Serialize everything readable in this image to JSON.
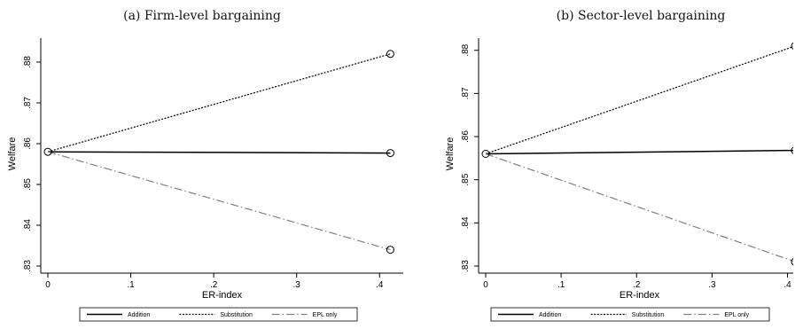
{
  "chart_data": [
    {
      "type": "line",
      "panel_title": "(a) Firm-level bargaining",
      "xlabel": "ER-index",
      "ylabel": "Welfare",
      "xlim": [
        0,
        0.42
      ],
      "ylim": [
        0.83,
        0.885
      ],
      "xticks": [
        0,
        0.1,
        0.2,
        0.3,
        0.4
      ],
      "xtick_labels": [
        "0",
        ".1",
        ".2",
        ".3",
        ".4"
      ],
      "yticks": [
        0.83,
        0.84,
        0.85,
        0.86,
        0.87,
        0.88
      ],
      "ytick_labels": [
        ".83",
        ".84",
        ".85",
        ".86",
        ".87",
        ".88"
      ],
      "grid": false,
      "legend_position": "bottom",
      "series": [
        {
          "name": "Addition",
          "x": [
            0,
            0.413
          ],
          "y": [
            0.858,
            0.8577
          ],
          "style": "solid",
          "color": "#000000"
        },
        {
          "name": "Substitution",
          "x": [
            0,
            0.413
          ],
          "y": [
            0.858,
            0.882
          ],
          "style": "dotted",
          "color": "#000000"
        },
        {
          "name": "EPL only",
          "x": [
            0,
            0.413
          ],
          "y": [
            0.858,
            0.834
          ],
          "style": "dashdot",
          "color": "#808080"
        }
      ],
      "markers": [
        [
          0,
          0.858
        ],
        [
          0.413,
          0.882
        ],
        [
          0.413,
          0.8577
        ],
        [
          0.413,
          0.834
        ]
      ]
    },
    {
      "type": "line",
      "panel_title": "(b) Sector-level bargaining",
      "xlabel": "ER-index",
      "ylabel": "Welfare",
      "xlim": [
        0,
        0.41
      ],
      "ylim": [
        0.83,
        0.882
      ],
      "xticks": [
        0,
        0.1,
        0.2,
        0.3,
        0.4
      ],
      "xtick_labels": [
        "0",
        ".1",
        ".2",
        ".3",
        ".4"
      ],
      "yticks": [
        0.83,
        0.84,
        0.85,
        0.86,
        0.87,
        0.88
      ],
      "ytick_labels": [
        ".83",
        ".84",
        ".85",
        ".86",
        ".87",
        ".88"
      ],
      "grid": false,
      "legend_position": "bottom",
      "series": [
        {
          "name": "Addition",
          "x": [
            0,
            0.41
          ],
          "y": [
            0.856,
            0.8568
          ],
          "style": "solid",
          "color": "#000000"
        },
        {
          "name": "Substitution",
          "x": [
            0,
            0.41
          ],
          "y": [
            0.856,
            0.881
          ],
          "style": "dotted",
          "color": "#000000"
        },
        {
          "name": "EPL only",
          "x": [
            0,
            0.41
          ],
          "y": [
            0.856,
            0.831
          ],
          "style": "dashdot",
          "color": "#808080"
        }
      ],
      "markers": [
        [
          0,
          0.856
        ],
        [
          0.41,
          0.881
        ],
        [
          0.41,
          0.8568
        ],
        [
          0.41,
          0.831
        ]
      ]
    }
  ]
}
